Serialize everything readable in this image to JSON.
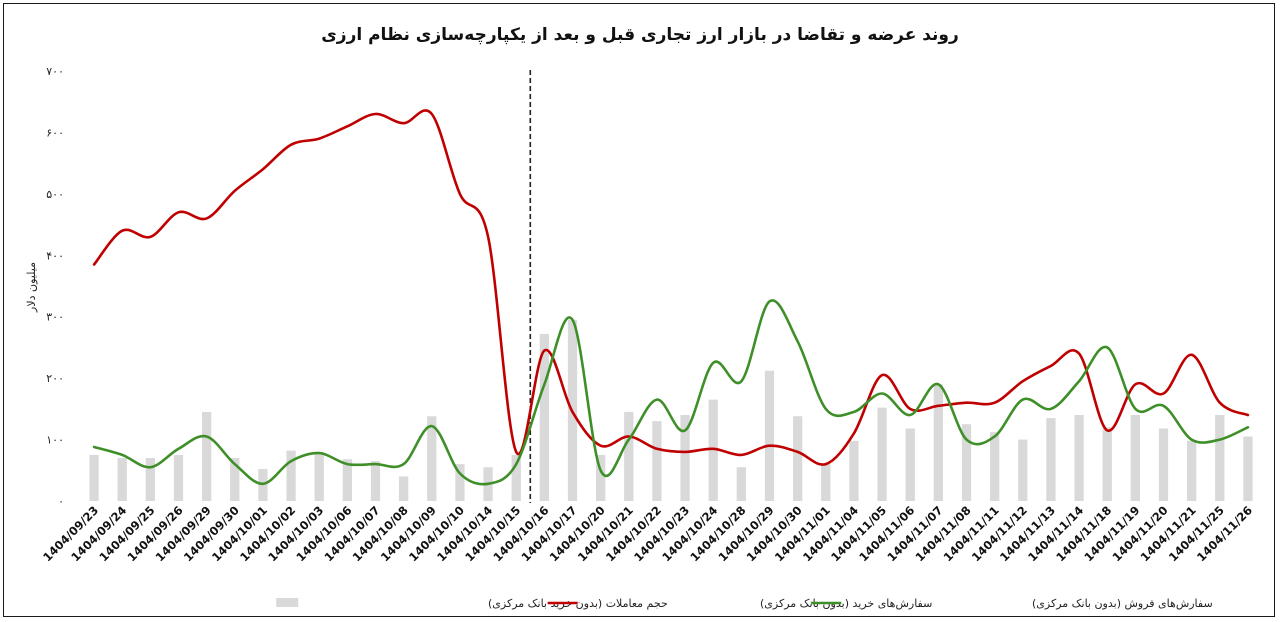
{
  "chart_data": {
    "type": "bar+line",
    "title": "روند عرضه و تقاضا در بازار ارز تجاری قبل و بعد از یکپارچه‌سازی نظام ارزی",
    "ylabel": "میلیون دلار",
    "xlabel": "",
    "ylim": [
      0,
      700
    ],
    "yticks": [
      "۰",
      "۱۰۰",
      "۲۰۰",
      "۳۰۰",
      "۴۰۰",
      "۵۰۰",
      "۶۰۰",
      "۷۰۰"
    ],
    "ytick_values": [
      0,
      100,
      200,
      300,
      400,
      500,
      600,
      700
    ],
    "grid": false,
    "categories": [
      "1404/09/23",
      "1404/09/24",
      "1404/09/25",
      "1404/09/26",
      "1404/09/29",
      "1404/09/30",
      "1404/10/01",
      "1404/10/02",
      "1404/10/03",
      "1404/10/06",
      "1404/10/07",
      "1404/10/08",
      "1404/10/09",
      "1404/10/10",
      "1404/10/14",
      "1404/10/15",
      "1404/10/16",
      "1404/10/17",
      "1404/10/20",
      "1404/10/21",
      "1404/10/22",
      "1404/10/23",
      "1404/10/24",
      "1404/10/28",
      "1404/10/29",
      "1404/10/30",
      "1404/11/01",
      "1404/11/04",
      "1404/11/05",
      "1404/11/06",
      "1404/11/07",
      "1404/11/08",
      "1404/11/11",
      "1404/11/12",
      "1404/11/13",
      "1404/11/14",
      "1404/11/18",
      "1404/11/19",
      "1404/11/20",
      "1404/11/21",
      "1404/11/25",
      "1404/11/26"
    ],
    "divider_after_category": "1404/10/15",
    "series": [
      {
        "name": "حجم معاملات (بدون خرید بانک مرکزی)",
        "kind": "bar",
        "color": "#d9d9d9",
        "values": [
          75,
          70,
          70,
          75,
          145,
          70,
          52,
          82,
          80,
          68,
          65,
          40,
          138,
          60,
          55,
          75,
          272,
          295,
          75,
          145,
          130,
          140,
          165,
          55,
          212,
          138,
          60,
          98,
          152,
          118,
          190,
          125,
          112,
          100,
          135,
          140,
          120,
          140,
          118,
          98,
          140,
          105
        ]
      },
      {
        "name": "سفارش‌های خرید (بدون بانک مرکزی)",
        "kind": "line",
        "color": "#c00000",
        "values": [
          385,
          440,
          430,
          470,
          460,
          505,
          540,
          580,
          590,
          610,
          630,
          615,
          630,
          500,
          430,
          80,
          245,
          145,
          90,
          105,
          85,
          80,
          85,
          75,
          90,
          80,
          60,
          110,
          205,
          150,
          155,
          160,
          160,
          195,
          220,
          240,
          115,
          190,
          175,
          238,
          160,
          140
        ]
      },
      {
        "name": "سفارش‌های فروش (بدون بانک مرکزی)",
        "kind": "line",
        "color": "#3f8f29",
        "values": [
          88,
          75,
          55,
          85,
          105,
          60,
          28,
          65,
          78,
          60,
          60,
          60,
          122,
          45,
          28,
          60,
          190,
          295,
          50,
          100,
          165,
          115,
          225,
          195,
          325,
          260,
          150,
          145,
          175,
          140,
          190,
          100,
          105,
          165,
          150,
          195,
          250,
          150,
          155,
          100,
          100,
          120
        ]
      }
    ],
    "legend": {
      "position": "bottom",
      "entries": [
        "حجم معاملات (بدون خرید بانک مرکزی)",
        "سفارش‌های خرید (بدون بانک مرکزی)",
        "سفارش‌های فروش (بدون بانک مرکزی)"
      ]
    }
  }
}
